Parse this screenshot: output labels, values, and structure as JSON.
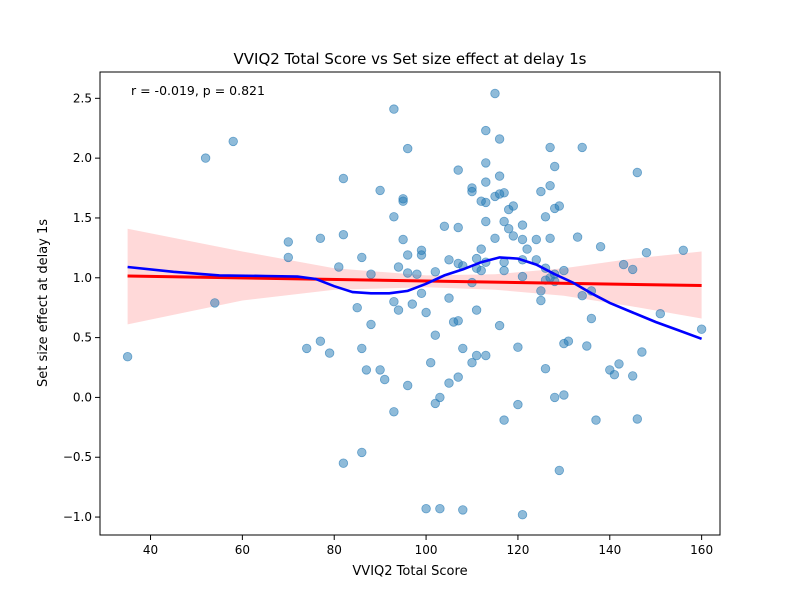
{
  "chart_data": {
    "type": "scatter",
    "title": "VVIQ2 Total Score vs Set size effect at delay 1s",
    "xlabel": "VVIQ2 Total Score",
    "ylabel": "Set size effect at delay 1s",
    "annotation": "r = -0.019, p = 0.821",
    "xlim": [
      29,
      164
    ],
    "ylim": [
      -1.15,
      2.72
    ],
    "xticks": [
      {
        "value": 40,
        "label": "40"
      },
      {
        "value": 60,
        "label": "60"
      },
      {
        "value": 80,
        "label": "80"
      },
      {
        "value": 100,
        "label": "100"
      },
      {
        "value": 120,
        "label": "120"
      },
      {
        "value": 140,
        "label": "140"
      },
      {
        "value": 160,
        "label": "160"
      }
    ],
    "yticks": [
      {
        "value": -1.0,
        "label": "−1.0"
      },
      {
        "value": -0.5,
        "label": "−0.5"
      },
      {
        "value": 0.0,
        "label": "0.0"
      },
      {
        "value": 0.5,
        "label": "0.5"
      },
      {
        "value": 1.0,
        "label": "1.0"
      },
      {
        "value": 1.5,
        "label": "1.5"
      },
      {
        "value": 2.0,
        "label": "2.0"
      },
      {
        "value": 2.5,
        "label": "2.5"
      }
    ],
    "grid": false,
    "colors": {
      "points": "#1f77b4",
      "regression": "#ff0000",
      "confidence_band": "#ffaaaa",
      "smooth": "#0000ff"
    },
    "points": [
      [
        35,
        0.34
      ],
      [
        52,
        2.0
      ],
      [
        54,
        0.79
      ],
      [
        58,
        2.14
      ],
      [
        70,
        1.3
      ],
      [
        70,
        1.17
      ],
      [
        74,
        0.41
      ],
      [
        77,
        0.47
      ],
      [
        77,
        1.33
      ],
      [
        79,
        0.37
      ],
      [
        81,
        1.09
      ],
      [
        82,
        1.83
      ],
      [
        82,
        1.36
      ],
      [
        82,
        -0.55
      ],
      [
        85,
        0.75
      ],
      [
        86,
        1.17
      ],
      [
        86,
        0.41
      ],
      [
        86,
        -0.46
      ],
      [
        87,
        0.23
      ],
      [
        88,
        1.03
      ],
      [
        88,
        0.61
      ],
      [
        90,
        1.73
      ],
      [
        90,
        0.23
      ],
      [
        91,
        0.15
      ],
      [
        93,
        2.41
      ],
      [
        93,
        1.51
      ],
      [
        93,
        0.8
      ],
      [
        93,
        -0.12
      ],
      [
        94,
        1.09
      ],
      [
        94,
        0.73
      ],
      [
        95,
        1.66
      ],
      [
        95,
        1.64
      ],
      [
        95,
        1.32
      ],
      [
        96,
        2.08
      ],
      [
        96,
        1.19
      ],
      [
        96,
        1.04
      ],
      [
        96,
        0.1
      ],
      [
        97,
        0.78
      ],
      [
        98,
        1.03
      ],
      [
        99,
        1.23
      ],
      [
        99,
        1.19
      ],
      [
        99,
        0.87
      ],
      [
        100,
        0.71
      ],
      [
        100,
        -0.93
      ],
      [
        101,
        0.29
      ],
      [
        102,
        1.05
      ],
      [
        102,
        0.52
      ],
      [
        102,
        -0.05
      ],
      [
        103,
        0.0
      ],
      [
        103,
        -0.93
      ],
      [
        104,
        1.43
      ],
      [
        105,
        1.15
      ],
      [
        105,
        0.83
      ],
      [
        105,
        0.12
      ],
      [
        106,
        0.63
      ],
      [
        107,
        1.9
      ],
      [
        107,
        1.42
      ],
      [
        107,
        1.12
      ],
      [
        107,
        0.64
      ],
      [
        107,
        0.17
      ],
      [
        108,
        1.1
      ],
      [
        108,
        0.41
      ],
      [
        108,
        -0.94
      ],
      [
        110,
        1.75
      ],
      [
        110,
        1.72
      ],
      [
        110,
        0.96
      ],
      [
        110,
        0.29
      ],
      [
        111,
        1.16
      ],
      [
        111,
        1.08
      ],
      [
        111,
        0.73
      ],
      [
        111,
        0.35
      ],
      [
        112,
        1.64
      ],
      [
        112,
        1.24
      ],
      [
        112,
        1.06
      ],
      [
        113,
        2.23
      ],
      [
        113,
        1.96
      ],
      [
        113,
        1.8
      ],
      [
        113,
        1.63
      ],
      [
        113,
        1.47
      ],
      [
        113,
        1.13
      ],
      [
        113,
        0.35
      ],
      [
        115,
        2.54
      ],
      [
        115,
        1.68
      ],
      [
        115,
        1.33
      ],
      [
        116,
        2.16
      ],
      [
        116,
        1.85
      ],
      [
        116,
        1.7
      ],
      [
        116,
        0.6
      ],
      [
        117,
        1.71
      ],
      [
        117,
        1.47
      ],
      [
        117,
        1.13
      ],
      [
        117,
        1.06
      ],
      [
        117,
        -0.19
      ],
      [
        118,
        1.57
      ],
      [
        118,
        1.41
      ],
      [
        119,
        1.6
      ],
      [
        119,
        1.35
      ],
      [
        120,
        0.42
      ],
      [
        120,
        -0.06
      ],
      [
        121,
        1.44
      ],
      [
        121,
        1.32
      ],
      [
        121,
        1.15
      ],
      [
        121,
        1.01
      ],
      [
        121,
        -0.98
      ],
      [
        122,
        1.24
      ],
      [
        124,
        1.32
      ],
      [
        124,
        1.15
      ],
      [
        125,
        1.72
      ],
      [
        125,
        0.89
      ],
      [
        125,
        0.81
      ],
      [
        126,
        1.51
      ],
      [
        126,
        1.08
      ],
      [
        126,
        0.98
      ],
      [
        126,
        0.24
      ],
      [
        127,
        2.09
      ],
      [
        127,
        1.77
      ],
      [
        127,
        1.33
      ],
      [
        127,
        1.0
      ],
      [
        128,
        1.93
      ],
      [
        128,
        1.58
      ],
      [
        128,
        1.03
      ],
      [
        128,
        0.97
      ],
      [
        128,
        0.0
      ],
      [
        129,
        1.6
      ],
      [
        129,
        -0.61
      ],
      [
        130,
        1.06
      ],
      [
        130,
        0.45
      ],
      [
        130,
        0.02
      ],
      [
        131,
        0.47
      ],
      [
        133,
        1.34
      ],
      [
        134,
        2.09
      ],
      [
        134,
        0.85
      ],
      [
        135,
        0.43
      ],
      [
        136,
        0.89
      ],
      [
        136,
        0.66
      ],
      [
        137,
        -0.19
      ],
      [
        138,
        1.26
      ],
      [
        140,
        0.23
      ],
      [
        141,
        0.19
      ],
      [
        142,
        0.28
      ],
      [
        143,
        1.11
      ],
      [
        145,
        1.07
      ],
      [
        145,
        0.18
      ],
      [
        146,
        1.88
      ],
      [
        146,
        -0.18
      ],
      [
        147,
        0.38
      ],
      [
        148,
        1.21
      ],
      [
        151,
        0.7
      ],
      [
        156,
        1.23
      ],
      [
        160,
        0.57
      ]
    ],
    "regression": [
      [
        35,
        1.015
      ],
      [
        160,
        0.935
      ]
    ],
    "confidence_band": {
      "x": [
        35,
        60,
        80,
        100,
        115,
        130,
        145,
        160
      ],
      "upper": [
        1.41,
        1.22,
        1.08,
        1.02,
        1.03,
        1.08,
        1.16,
        1.22
      ],
      "lower": [
        0.61,
        0.81,
        0.9,
        0.92,
        0.9,
        0.85,
        0.76,
        0.66
      ]
    },
    "smooth": [
      [
        35,
        1.09
      ],
      [
        45,
        1.05
      ],
      [
        55,
        1.02
      ],
      [
        65,
        1.015
      ],
      [
        72,
        1.01
      ],
      [
        76,
        0.99
      ],
      [
        80,
        0.93
      ],
      [
        84,
        0.88
      ],
      [
        88,
        0.87
      ],
      [
        92,
        0.87
      ],
      [
        96,
        0.89
      ],
      [
        100,
        0.95
      ],
      [
        104,
        1.02
      ],
      [
        108,
        1.07
      ],
      [
        112,
        1.13
      ],
      [
        116,
        1.17
      ],
      [
        120,
        1.16
      ],
      [
        124,
        1.11
      ],
      [
        128,
        1.03
      ],
      [
        132,
        0.96
      ],
      [
        136,
        0.87
      ],
      [
        140,
        0.79
      ],
      [
        145,
        0.71
      ],
      [
        150,
        0.63
      ],
      [
        155,
        0.56
      ],
      [
        160,
        0.49
      ]
    ]
  }
}
